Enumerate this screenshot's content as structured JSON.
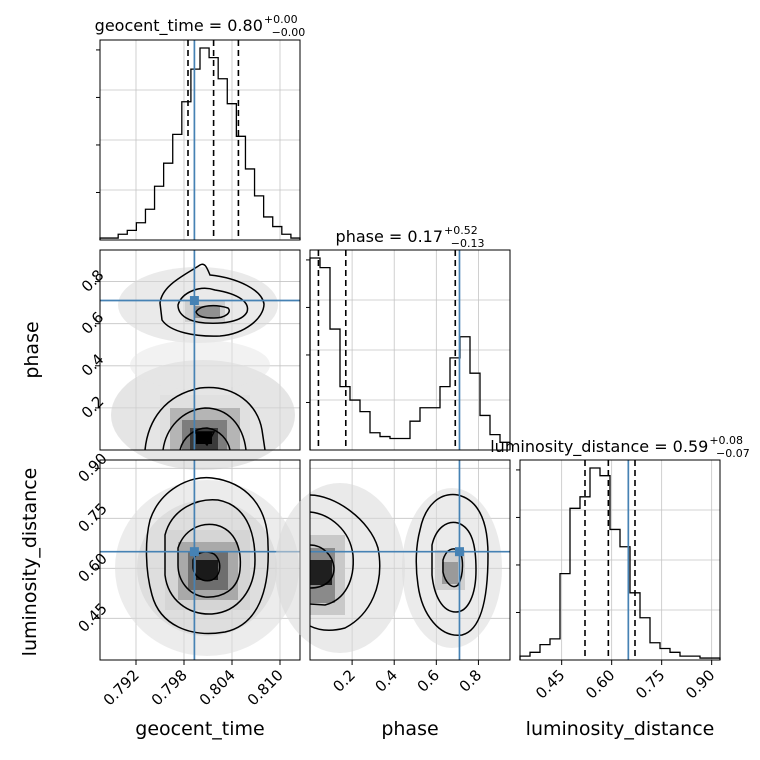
{
  "chart_data": {
    "type": "corner",
    "parameters": [
      {
        "name": "geocent_time",
        "xlabel": "geocent_time",
        "ylabel": "",
        "ticks": [
          0.792,
          0.798,
          0.804,
          0.81
        ],
        "tick_labels": [
          "0.792",
          "0.798",
          "0.804",
          "0.810"
        ],
        "range": [
          0.7875,
          0.8125
        ],
        "truth": 0.7993,
        "title": {
          "median": "0.80",
          "plus": "+0.00",
          "minus": "−0.00",
          "text": "geocent_time = 0.80"
        },
        "quantiles": [
          0.7985,
          0.8017,
          0.8048
        ],
        "hist": [
          0.01,
          0.01,
          0.03,
          0.05,
          0.09,
          0.16,
          0.28,
          0.4,
          0.55,
          0.72,
          0.89,
          1.0,
          0.95,
          0.84,
          0.71,
          0.54,
          0.37,
          0.23,
          0.12,
          0.07,
          0.03,
          0.01
        ]
      },
      {
        "name": "phase",
        "xlabel": "phase",
        "ylabel": "phase",
        "ticks": [
          0.2,
          0.4,
          0.6,
          0.8
        ],
        "tick_labels": [
          "0.2",
          "0.4",
          "0.6",
          "0.8"
        ],
        "range": [
          0.0,
          0.95
        ],
        "truth": 0.71,
        "title": {
          "median": "0.17",
          "plus": "+0.52",
          "minus": "−0.13",
          "text": "phase = 0.17"
        },
        "quantiles": [
          0.04,
          0.17,
          0.69
        ],
        "hist": [
          1.0,
          0.95,
          0.63,
          0.33,
          0.26,
          0.2,
          0.09,
          0.07,
          0.06,
          0.06,
          0.15,
          0.22,
          0.22,
          0.33,
          0.48,
          0.59,
          0.4,
          0.18,
          0.08,
          0.04
        ]
      },
      {
        "name": "luminosity_distance",
        "xlabel": "luminosity_distance",
        "ylabel": "luminosity_distance",
        "ticks": [
          0.45,
          0.6,
          0.75,
          0.9
        ],
        "tick_labels": [
          "0.45",
          "0.60",
          "0.75",
          "0.90"
        ],
        "range": [
          0.325,
          0.925
        ],
        "truth": 0.65,
        "title": {
          "median": "0.59",
          "plus": "+0.08",
          "minus": "−0.07",
          "text": "luminosity_distance = 0.59"
        },
        "quantiles": [
          0.52,
          0.59,
          0.67
        ],
        "hist": [
          0.02,
          0.04,
          0.08,
          0.11,
          0.45,
          0.79,
          0.85,
          1.0,
          0.96,
          0.68,
          0.59,
          0.35,
          0.22,
          0.09,
          0.06,
          0.04,
          0.02,
          0.02,
          0.01,
          0.01
        ]
      }
    ],
    "grid": true,
    "truth_color": "#4682b4",
    "contour_color": "#000000"
  }
}
